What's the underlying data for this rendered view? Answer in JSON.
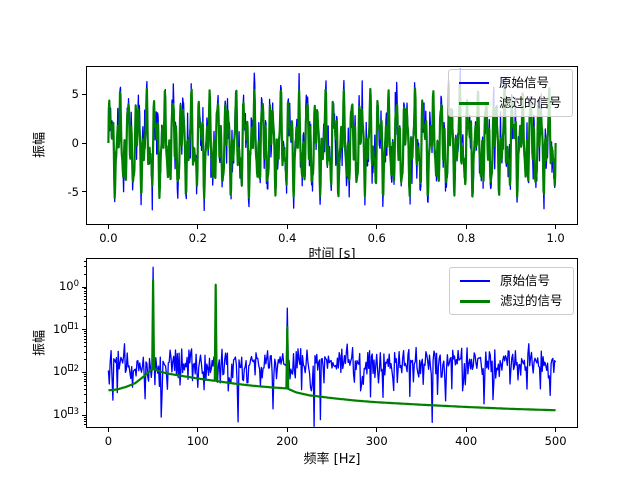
{
  "figure": {
    "background": "#ffffff",
    "frame_color": "#000000"
  },
  "style": {
    "original_color": "#0000ff",
    "filtered_color": "#008000",
    "legend_background": "rgba(255,255,255,0.8)",
    "legend_edge": "#cccccc"
  },
  "chart_data": [
    {
      "id": "time_domain",
      "type": "line",
      "title": "",
      "xlabel": "时间 [s]",
      "ylabel": "振幅",
      "xlim": [
        -0.05,
        1.05
      ],
      "ylim": [
        -8.2,
        7.9
      ],
      "grid": false,
      "legend_position": "upper right",
      "xticks": {
        "values": [
          0.0,
          0.2,
          0.4,
          0.6,
          0.8,
          1.0
        ],
        "labels": [
          "0.0",
          "0.2",
          "0.4",
          "0.6",
          "0.8",
          "1.0"
        ]
      },
      "yticks": {
        "values": [
          5,
          0,
          -5
        ],
        "labels": [
          "5",
          "0",
          "-5"
        ]
      },
      "series": [
        {
          "name": "原始信号",
          "color": "#0000ff",
          "line_width": 1.3,
          "generator": {
            "kind": "sum_of_sines_plus_noise",
            "t_start": 0,
            "t_end": 1,
            "samples": 1000,
            "seed": 7,
            "components": [
              {
                "freq_hz": 50,
                "amplitude": 2.8
              },
              {
                "freq_hz": 120,
                "amplitude": 2.0
              },
              {
                "freq_hz": 200,
                "amplitude": 1.2
              }
            ],
            "noise_sigma": 1.15
          }
        },
        {
          "name": "滤过的信号",
          "color": "#008000",
          "line_width": 2.2,
          "generator": {
            "kind": "sum_of_sines_plus_noise",
            "t_start": 0,
            "t_end": 1,
            "samples": 1000,
            "seed": 7,
            "components": [
              {
                "freq_hz": 50,
                "amplitude": 2.8
              },
              {
                "freq_hz": 120,
                "amplitude": 2.0
              },
              {
                "freq_hz": 200,
                "amplitude": 1.2
              }
            ],
            "noise_sigma": 0
          }
        }
      ]
    },
    {
      "id": "frequency_domain",
      "type": "line",
      "yscale": "log",
      "title": "",
      "xlabel": "频率 [Hz]",
      "ylabel": "振幅",
      "xlim": [
        -25,
        525
      ],
      "ylim": [
        0.0005,
        4.8
      ],
      "grid": false,
      "legend_position": "upper right",
      "xticks": {
        "values": [
          0,
          100,
          200,
          300,
          400,
          500
        ],
        "labels": [
          "0",
          "100",
          "200",
          "300",
          "400",
          "500"
        ]
      },
      "yticks": {
        "values": [
          1,
          0.1,
          0.01,
          0.001
        ],
        "labels": [
          {
            "base": "10",
            "exponent": "0",
            "missing_minus_glyph": false
          },
          {
            "base": "10",
            "exponent": "1",
            "missing_minus_glyph": true
          },
          {
            "base": "10",
            "exponent": "2",
            "missing_minus_glyph": true
          },
          {
            "base": "10",
            "exponent": "3",
            "missing_minus_glyph": true
          }
        ]
      },
      "series": [
        {
          "name": "原始信号",
          "color": "#0000ff",
          "line_width": 1.3,
          "generator": {
            "kind": "rayleigh_noise_floor_with_peaks",
            "f_start": 0,
            "f_end": 500,
            "bins": 501,
            "seed": 12,
            "rayleigh_scale": 0.0135,
            "peaks": [
              {
                "freq_hz": 50,
                "value": 2.9
              },
              {
                "freq_hz": 120,
                "value": 1.15
              },
              {
                "freq_hz": 200,
                "value": 0.32
              }
            ]
          }
        },
        {
          "name": "滤过的信号",
          "color": "#008000",
          "line_width": 2.2,
          "generator": {
            "kind": "log_baseline_with_peaks",
            "f_start": 0,
            "f_end": 500,
            "bins": 501,
            "baseline_points": [
              [
                0,
                0.0038
              ],
              [
                10,
                0.004
              ],
              [
                20,
                0.0046
              ],
              [
                30,
                0.0056
              ],
              [
                40,
                0.0082
              ],
              [
                48,
                0.0116
              ],
              [
                52,
                0.0118
              ],
              [
                60,
                0.0101
              ],
              [
                70,
                0.0091
              ],
              [
                85,
                0.0081
              ],
              [
                100,
                0.0072
              ],
              [
                120,
                0.0063
              ],
              [
                140,
                0.0055
              ],
              [
                160,
                0.0049
              ],
              [
                180,
                0.0045
              ],
              [
                200,
                0.0042
              ],
              [
                210,
                0.0034
              ],
              [
                225,
                0.0029
              ],
              [
                250,
                0.0025
              ],
              [
                275,
                0.0022
              ],
              [
                300,
                0.002
              ],
              [
                350,
                0.00175
              ],
              [
                400,
                0.00155
              ],
              [
                450,
                0.0014
              ],
              [
                500,
                0.0013
              ]
            ],
            "peaks": [
              {
                "freq_hz": 50,
                "value": 1.45
              },
              {
                "freq_hz": 120,
                "value": 1.12
              },
              {
                "freq_hz": 200,
                "value": 0.115
              }
            ]
          }
        }
      ]
    }
  ]
}
